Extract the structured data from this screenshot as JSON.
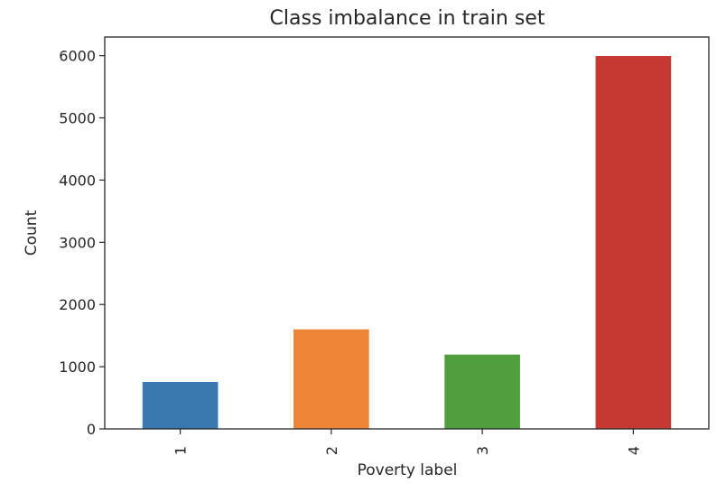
{
  "chart_data": {
    "type": "bar",
    "title": "Class imbalance in train set",
    "xlabel": "Poverty label",
    "ylabel": "Count",
    "categories": [
      "1",
      "2",
      "3",
      "4"
    ],
    "values": [
      755,
      1600,
      1195,
      5995
    ],
    "colors": [
      "#3a78b0",
      "#ee8536",
      "#519e3e",
      "#c53932"
    ],
    "yticks": [
      0,
      1000,
      2000,
      3000,
      4000,
      5000,
      6000
    ],
    "ylim": [
      0,
      6300
    ],
    "grid": false,
    "legend": false
  }
}
